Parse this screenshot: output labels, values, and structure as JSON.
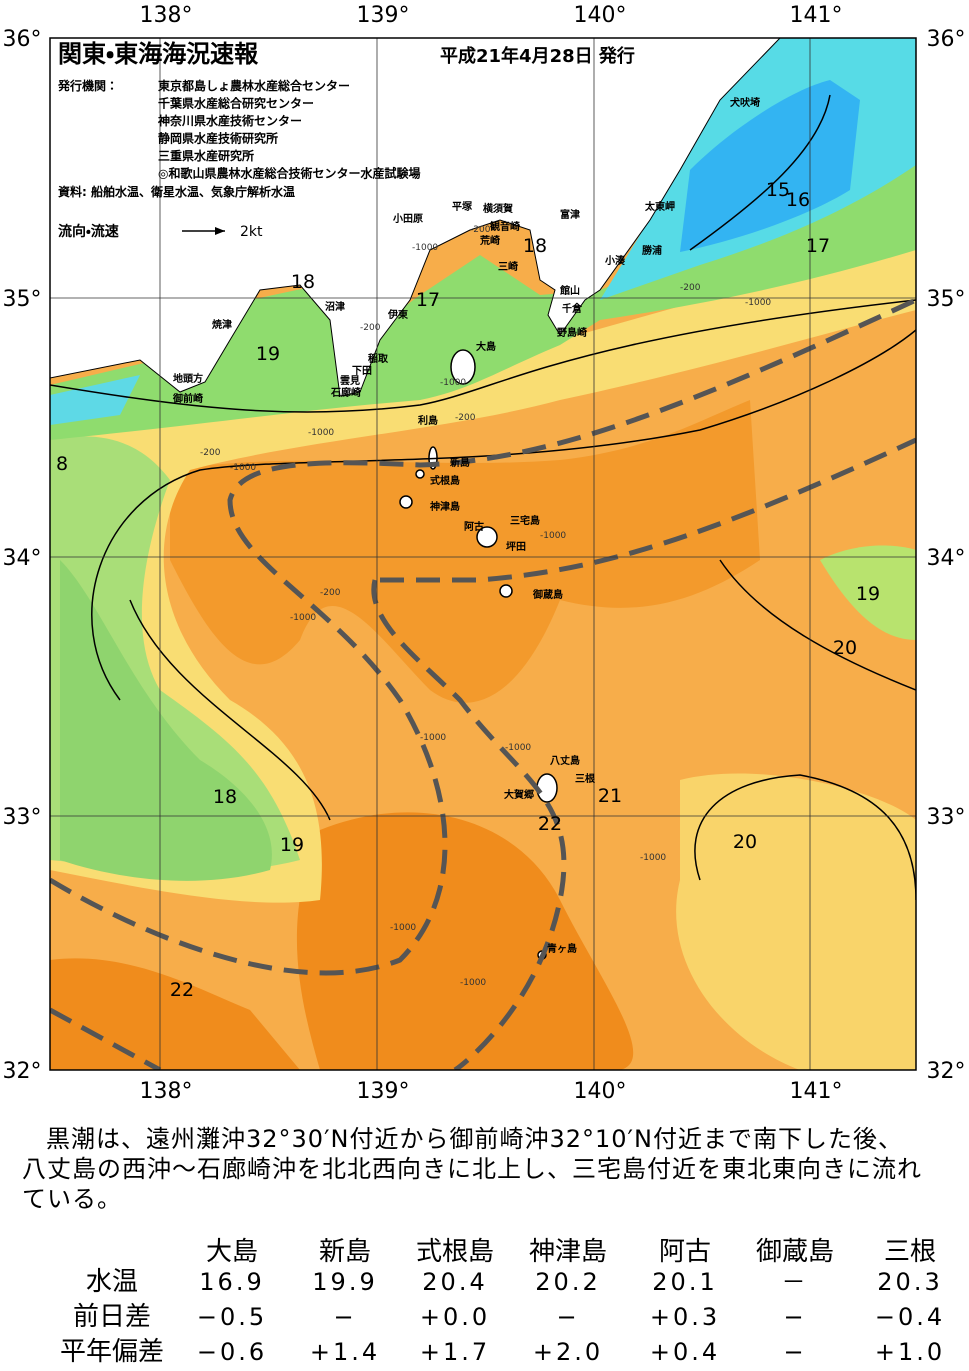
{
  "header": {
    "title": "関東・東海海況速報",
    "issued": "平成21年4月28日 発行",
    "agencies_label": "発行機関：",
    "agencies": [
      "東京都島しょ農林水産総合センター",
      "千葉県水産総合研究センター",
      "神奈川県水産技術センター",
      "静岡県水産技術研究所",
      "三重県水産研究所",
      "◎和歌山県農林水産総合技術センター水産試験場"
    ],
    "sources": "資料: 船舶水温、衛星水温、気象庁解析水温",
    "current_legend": "流向・流速",
    "current_scale": "2kt"
  },
  "map": {
    "lon_labels": [
      "138°",
      "139°",
      "140°",
      "141°"
    ],
    "lat_labels": [
      "36°",
      "35°",
      "34°",
      "33°",
      "32°"
    ],
    "place_labels": [
      "犬吠埼",
      "太東岬",
      "富津",
      "横須賀",
      "平塚",
      "小田原",
      "観音崎",
      "荒崎",
      "三崎",
      "勝浦",
      "小湊",
      "館山",
      "千倉",
      "野島崎",
      "沼津",
      "伊東",
      "焼津",
      "稲取",
      "大島",
      "下田",
      "雲見",
      "石廊崎",
      "地頭方",
      "御前崎",
      "利島",
      "新島",
      "式根島",
      "神津島",
      "三宅島",
      "阿古",
      "坪田",
      "御蔵島",
      "八丈島",
      "三根",
      "大賀郷",
      "青ヶ島"
    ],
    "isotherm_labels": [
      "15",
      "16",
      "17",
      "18",
      "18",
      "17",
      "19",
      "8",
      "19",
      "20",
      "18",
      "21",
      "19",
      "22",
      "20",
      "22"
    ],
    "depth_labels": [
      "-200",
      "-1000",
      "-200",
      "-1000",
      "-200",
      "-1000",
      "-200",
      "-1000",
      "-200",
      "-1000",
      "-200",
      "-1000",
      "-1000",
      "-1000",
      "-1000",
      "-1000",
      "-1000",
      "-1000"
    ]
  },
  "summary": "黒潮は、遠州灘沖32°30′N付近から御前崎沖32°10′N付近まで南下した後、八丈島の西沖～石廊崎沖を北北西向きに北上し、三宅島付近を東北東向きに流れている。",
  "table": {
    "columns": [
      "大島",
      "新島",
      "式根島",
      "神津島",
      "阿古",
      "御蔵島",
      "三根"
    ],
    "rows": [
      {
        "label": "水温",
        "cells": [
          "16.9",
          "19.9",
          "20.4",
          "20.2",
          "20.1",
          "－",
          "20.3"
        ]
      },
      {
        "label": "前日差",
        "cells": [
          "−0.5",
          "−",
          "+0.0",
          "−",
          "+0.3",
          "−",
          "−0.4"
        ]
      },
      {
        "label": "平年偏差",
        "cells": [
          "−0.6",
          "+1.4",
          "+1.7",
          "+2.0",
          "+0.4",
          "−",
          "+1.0"
        ]
      }
    ]
  }
}
